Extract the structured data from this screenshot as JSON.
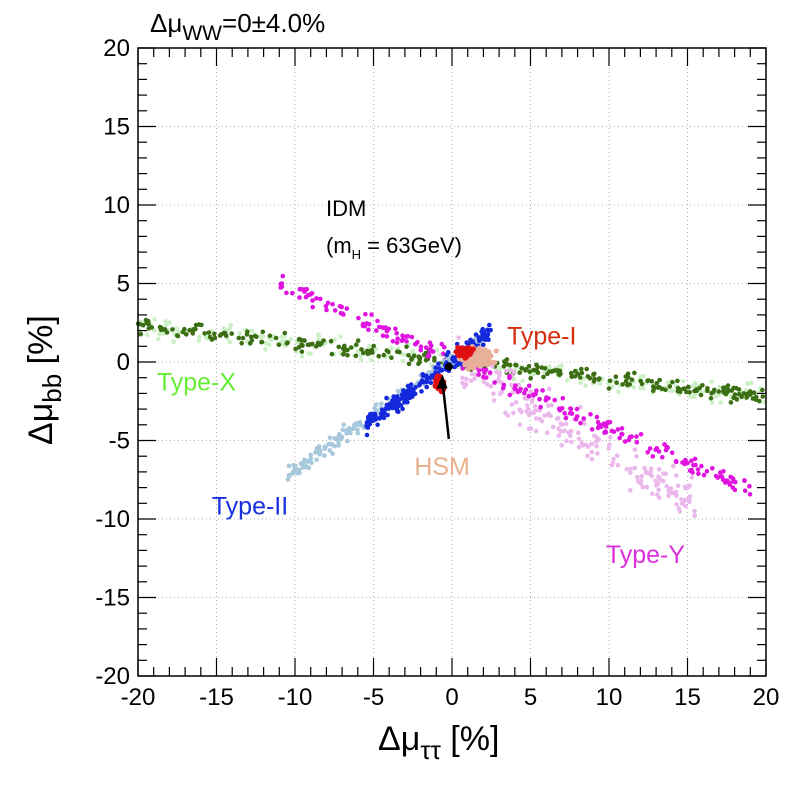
{
  "chart_data": {
    "type": "scatter",
    "title": "Δμ",
    "title_sub": "WW",
    "title_suffix": "=0±4.0%",
    "xlabel": "Δμ",
    "xlabel_sub": "ττ",
    "xlabel_suffix": " [%]",
    "ylabel": "Δμ",
    "ylabel_sub": "bb",
    "ylabel_suffix": " [%]",
    "xlim": [
      -20,
      20
    ],
    "ylim": [
      -20,
      20
    ],
    "xticks": [
      -20,
      -15,
      -10,
      -5,
      0,
      5,
      10,
      15,
      20
    ],
    "yticks": [
      -20,
      -15,
      -10,
      -5,
      0,
      5,
      10,
      15,
      20
    ],
    "grid": true,
    "annotations": {
      "idm_line1": "IDM",
      "idm_line2_prefix": "(m",
      "idm_line2_sub": "H",
      "idm_line2_suffix": " = 63GeV)"
    },
    "series": [
      {
        "name": "Type-X",
        "color": "#ccf0c6",
        "style": "band",
        "slope": -0.113,
        "intercept": 0.05,
        "x_range": [
          -20,
          20
        ],
        "spread": 0.7
      },
      {
        "name": "Type-X (dark)",
        "color": "#3c6e14",
        "style": "band",
        "slope": -0.113,
        "intercept": 0.05,
        "x_range": [
          -20,
          20
        ],
        "spread": 0.5
      },
      {
        "name": "Type-Y (light)",
        "color": "#ebb8eb",
        "style": "band",
        "slope": -0.57,
        "intercept": 0.0,
        "x_range": [
          0,
          15.5
        ],
        "spread": 1.5
      },
      {
        "name": "Type-Y",
        "color": "#e014e0",
        "style": "band",
        "slope": -0.44,
        "intercept": 0.2,
        "x_range": [
          -11,
          19
        ],
        "spread": 0.6
      },
      {
        "name": "Type-II (light)",
        "color": "#a8c8dc",
        "style": "band",
        "slope": 0.71,
        "intercept": 0.2,
        "x_range": [
          -10.5,
          2
        ],
        "spread": 0.5
      },
      {
        "name": "Type-II",
        "color": "#1428dc",
        "style": "band",
        "slope": 0.75,
        "intercept": 0.1,
        "x_range": [
          -5.5,
          2.5
        ],
        "spread": 0.6
      },
      {
        "name": "HSM",
        "color": "#e8b098",
        "style": "cluster",
        "center": [
          1.5,
          0.3
        ],
        "spread": [
          1.0,
          0.6
        ]
      },
      {
        "name": "Type-I",
        "color": "#e01010",
        "style": "cluster",
        "center": [
          0.8,
          0.6
        ],
        "spread": [
          0.5,
          0.3
        ]
      },
      {
        "name": "Type-I (low)",
        "color": "#e01010",
        "style": "cluster",
        "center": [
          -0.8,
          -1.4
        ],
        "spread": [
          0.3,
          0.5
        ]
      },
      {
        "name": "IDM",
        "color": "#000000",
        "style": "point",
        "x": -0.2,
        "y": -0.3
      }
    ],
    "legend": [
      {
        "label": "Type-I",
        "color": "#d42c0c",
        "x": 3.5,
        "y": 1.1
      },
      {
        "label": "Type-X",
        "color": "#66ee33",
        "x": -18.8,
        "y": -1.8
      },
      {
        "label": "HSM",
        "color": "#e8b08c",
        "x": -2.4,
        "y": -7.2
      },
      {
        "label": "Type-II",
        "color": "#1a30e0",
        "x": -15.3,
        "y": -9.7
      },
      {
        "label": "Type-Y",
        "color": "#dd30dd",
        "x": 9.8,
        "y": -12.8
      }
    ],
    "arrow": {
      "from": [
        -0.2,
        -4.9
      ],
      "to": [
        -0.6,
        -0.8
      ]
    }
  }
}
